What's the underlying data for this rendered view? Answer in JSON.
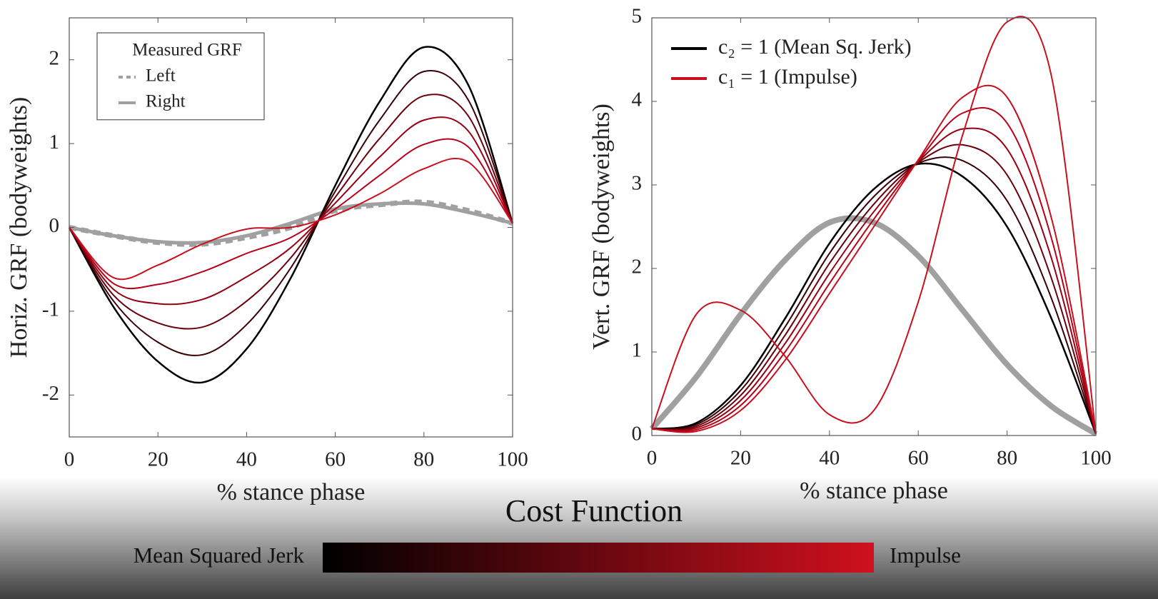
{
  "chart_data": [
    {
      "type": "line",
      "xlabel": "% stance phase",
      "ylabel": "Horiz. GRF (bodyweights)",
      "x": [
        0,
        10,
        20,
        30,
        40,
        50,
        60,
        70,
        80,
        90,
        100
      ],
      "xlim": [
        0,
        100
      ],
      "xticks": [
        0,
        20,
        40,
        60,
        80,
        100
      ],
      "ylim": [
        -2.5,
        2.5
      ],
      "yticks": [
        -2,
        -1,
        0,
        1,
        2
      ],
      "legend": {
        "title": "Measured GRF",
        "loc": "upper left",
        "frame": true
      },
      "series": [
        {
          "name": "Left",
          "color": "#a0a0a0",
          "linestyle": "dashed",
          "linewidth": 7,
          "values": [
            0,
            -0.1,
            -0.18,
            -0.2,
            -0.12,
            0.0,
            0.2,
            0.27,
            0.3,
            0.2,
            0.05
          ]
        },
        {
          "name": "Right",
          "color": "#a0a0a0",
          "linestyle": "solid",
          "linewidth": 5,
          "values": [
            0,
            -0.1,
            -0.17,
            -0.18,
            -0.1,
            0.05,
            0.22,
            0.28,
            0.28,
            0.18,
            0.05
          ]
        },
        {
          "color": "#000000",
          "linestyle": "solid",
          "linewidth": 2.5,
          "values": [
            0,
            -0.95,
            -1.6,
            -1.85,
            -1.45,
            -0.6,
            0.5,
            1.5,
            2.15,
            1.7,
            0.05
          ]
        },
        {
          "color": "#3a0005",
          "linestyle": "solid",
          "linewidth": 2,
          "values": [
            0,
            -0.88,
            -1.37,
            -1.52,
            -1.16,
            -0.48,
            0.43,
            1.28,
            1.86,
            1.52,
            0.05
          ]
        },
        {
          "color": "#6a000c",
          "linestyle": "solid",
          "linewidth": 2,
          "values": [
            0,
            -0.81,
            -1.14,
            -1.19,
            -0.88,
            -0.36,
            0.36,
            1.06,
            1.57,
            1.33,
            0.05
          ]
        },
        {
          "color": "#960012",
          "linestyle": "solid",
          "linewidth": 2,
          "values": [
            0,
            -0.74,
            -0.91,
            -0.86,
            -0.59,
            -0.24,
            0.29,
            0.84,
            1.28,
            1.15,
            0.05
          ]
        },
        {
          "color": "#b80018",
          "linestyle": "solid",
          "linewidth": 2,
          "values": [
            0,
            -0.67,
            -0.68,
            -0.53,
            -0.31,
            -0.12,
            0.22,
            0.62,
            0.99,
            0.96,
            0.05
          ]
        },
        {
          "color": "#c8101e",
          "linestyle": "solid",
          "linewidth": 2,
          "values": [
            0,
            -0.6,
            -0.45,
            -0.2,
            -0.02,
            0.0,
            0.15,
            0.4,
            0.7,
            0.78,
            0.05
          ]
        }
      ]
    },
    {
      "type": "line",
      "xlabel": "% stance phase",
      "ylabel": "Vert. GRF (bodyweights)",
      "x": [
        0,
        10,
        20,
        30,
        40,
        50,
        60,
        70,
        80,
        90,
        100
      ],
      "xlim": [
        0,
        100
      ],
      "xticks": [
        0,
        20,
        40,
        60,
        80,
        100
      ],
      "ylim": [
        0,
        5
      ],
      "yticks": [
        0,
        1,
        2,
        3,
        4,
        5
      ],
      "legend": {
        "loc": "upper left",
        "frame": false
      },
      "series": [
        {
          "color": "#a0a0a0",
          "linestyle": "solid",
          "linewidth": 8,
          "values": [
            0.08,
            0.7,
            1.45,
            2.1,
            2.55,
            2.55,
            2.15,
            1.5,
            0.85,
            0.35,
            0.02
          ]
        },
        {
          "name": "c₂ = 1  (Mean Sq. Jerk)",
          "color": "#000000",
          "linestyle": "solid",
          "linewidth": 2.5,
          "values": [
            0.08,
            0.15,
            0.6,
            1.4,
            2.3,
            2.95,
            3.25,
            3.1,
            2.5,
            1.4,
            0.02
          ]
        },
        {
          "color": "#3a0005",
          "linestyle": "solid",
          "linewidth": 2,
          "values": [
            0.08,
            0.13,
            0.54,
            1.3,
            2.18,
            2.86,
            3.26,
            3.29,
            2.81,
            1.64,
            0.02
          ]
        },
        {
          "color": "#6a000c",
          "linestyle": "solid",
          "linewidth": 2,
          "values": [
            0.08,
            0.11,
            0.48,
            1.2,
            2.06,
            2.77,
            3.27,
            3.48,
            3.12,
            1.88,
            0.02
          ]
        },
        {
          "color": "#960012",
          "linestyle": "solid",
          "linewidth": 2,
          "values": [
            0.08,
            0.09,
            0.42,
            1.1,
            1.94,
            2.68,
            3.28,
            3.67,
            3.43,
            2.12,
            0.02
          ]
        },
        {
          "color": "#b80018",
          "linestyle": "solid",
          "linewidth": 2,
          "values": [
            0.08,
            0.07,
            0.36,
            1.0,
            1.82,
            2.59,
            3.29,
            3.86,
            3.74,
            2.36,
            0.02
          ]
        },
        {
          "color": "#c40f1c",
          "linestyle": "solid",
          "linewidth": 2,
          "values": [
            0.08,
            0.05,
            0.3,
            0.9,
            1.7,
            2.5,
            3.3,
            4.05,
            4.05,
            2.6,
            0.02
          ]
        },
        {
          "name": "c₁ = 1  (Impulse)",
          "color": "#c8101e",
          "linestyle": "solid",
          "linewidth": 2,
          "values": [
            0.08,
            1.45,
            1.5,
            0.95,
            0.25,
            0.3,
            1.6,
            3.6,
            4.95,
            4.3,
            0.02
          ]
        }
      ]
    }
  ],
  "colorbar": {
    "title": "Cost Function",
    "low_label": "Mean Squared Jerk",
    "high_label": "Impulse",
    "colors": [
      "#000000",
      "#d0101e"
    ]
  }
}
